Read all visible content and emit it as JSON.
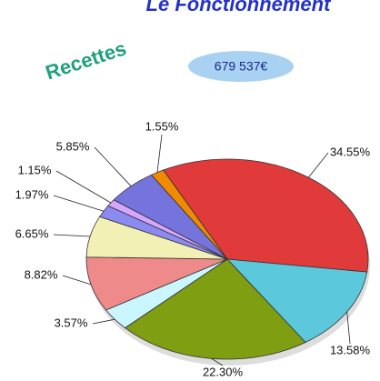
{
  "chart_data": {
    "type": "pie",
    "title": "Le Fonctionnement",
    "subtitle": "Recettes",
    "annotation": "679 537€",
    "values": [
      34.55,
      13.58,
      22.3,
      3.57,
      8.82,
      6.65,
      1.97,
      1.15,
      5.85,
      1.55
    ],
    "value_labels": [
      "34.55%",
      "13.58%",
      "22.30%",
      "3.57%",
      "8.82%",
      "6.65%",
      "1.97%",
      "1.15%",
      "5.85%",
      "1.55%"
    ],
    "colors": [
      "#e03a3a",
      "#5cc8dc",
      "#7f9e12",
      "#c9f6ff",
      "#ef8a8a",
      "#f2f0b4",
      "#8a8af0",
      "#d6a6ff",
      "#7474dc",
      "#f08a00"
    ]
  }
}
